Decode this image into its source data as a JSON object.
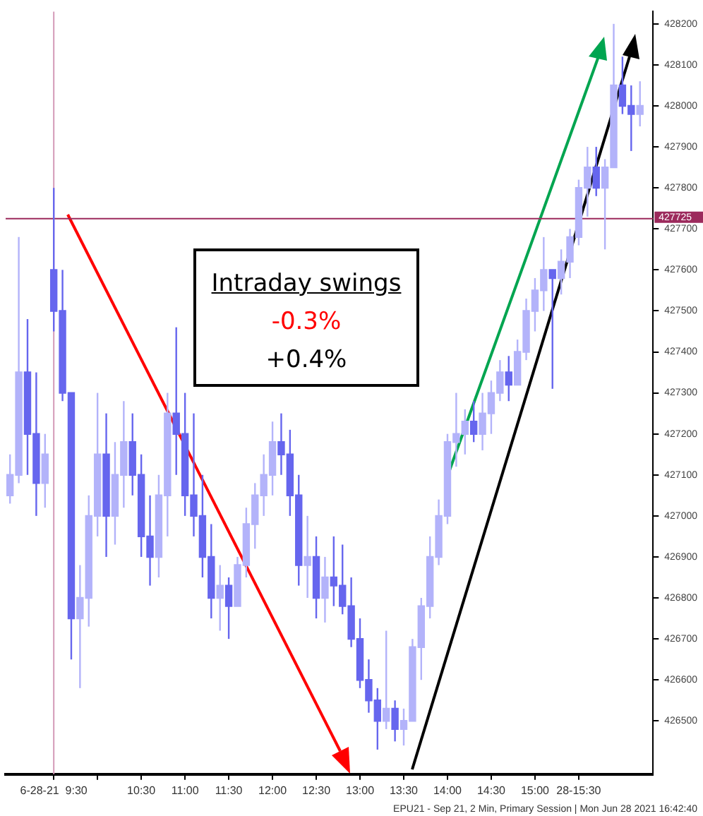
{
  "chart_data": {
    "type": "candlestick",
    "colors": [
      "#b3b3fa",
      "#b3b3fa",
      "#6666ee",
      "#6666ee",
      "#b3b3fa",
      "#6666ee",
      "#6666ee",
      "#6666ee",
      "#b3b3fa",
      "#b3b3fa",
      "#b3b3fa",
      "#6666ee",
      "#b3b3fa",
      "#b3b3fa",
      "#6666ee",
      "#6666ee",
      "#6666ee",
      "#b3b3fa",
      "#b3b3fa",
      "#6666ee",
      "#6666ee",
      "#6666ee",
      "#6666ee",
      "#6666ee",
      "#b3b3fa",
      "#6666ee",
      "#b3b3fa",
      "#b3b3fa",
      "#b3b3fa",
      "#b3b3fa",
      "#b3b3fa",
      "#6666ee",
      "#6666ee",
      "#6666ee",
      "#b3b3fa",
      "#6666ee",
      "#b3b3fa",
      "#6666ee",
      "#6666ee",
      "#6666ee",
      "#6666ee",
      "#6666ee",
      "#6666ee",
      "#b3b3fa",
      "#6666ee",
      "#b3b3fa",
      "#b3b3fa",
      "#b3b3fa",
      "#b3b3fa",
      "#b3b3fa",
      "#b3b3fa",
      "#b3b3fa",
      "#b3b3fa",
      "#6666ee",
      "#b3b3fa",
      "#b3b3fa",
      "#b3b3fa",
      "#6666ee",
      "#b3b3fa",
      "#b3b3fa",
      "#b3b3fa",
      "#b3b3fa",
      "#6666ee",
      "#b3b3fa",
      "#b3b3fa",
      "#b3b3fa",
      "#b3b3fa",
      "#6666ee",
      "#b3b3fa",
      "#b3b3fa",
      "#6666ee",
      "#6666ee",
      "#b3b3fa"
    ],
    "x": [
      9.0,
      9.1,
      9.2,
      9.3,
      9.4,
      9.5,
      9.6,
      9.7,
      9.8,
      9.9,
      10.0,
      10.1,
      10.2,
      10.3,
      10.4,
      10.5,
      10.6,
      10.7,
      10.8,
      10.9,
      11.0,
      11.1,
      11.2,
      11.3,
      11.4,
      11.5,
      11.6,
      11.7,
      11.8,
      11.9,
      12.0,
      12.1,
      12.2,
      12.3,
      12.4,
      12.5,
      12.6,
      12.7,
      12.8,
      12.9,
      13.0,
      13.1,
      13.2,
      13.3,
      13.4,
      13.5,
      13.6,
      13.7,
      13.8,
      13.9,
      14.0,
      14.1,
      14.2,
      14.3,
      14.4,
      14.5,
      14.6,
      14.7,
      14.8,
      14.9,
      15.0,
      15.1,
      15.2,
      15.3,
      15.4,
      15.5,
      15.6,
      15.7,
      15.8,
      15.9,
      16.0,
      16.1,
      16.2
    ],
    "ohlc": [
      [
        427050,
        427150,
        427030,
        427100
      ],
      [
        427100,
        427680,
        427080,
        427350
      ],
      [
        427350,
        427480,
        427100,
        427200
      ],
      [
        427200,
        427350,
        427000,
        427080
      ],
      [
        427080,
        427200,
        427020,
        427150
      ],
      [
        427600,
        427800,
        427450,
        427500
      ],
      [
        427500,
        427600,
        427280,
        427300
      ],
      [
        427300,
        427300,
        426650,
        426750
      ],
      [
        426750,
        426880,
        426580,
        426800
      ],
      [
        426800,
        427050,
        426730,
        427000
      ],
      [
        427000,
        427300,
        426950,
        427150
      ],
      [
        427150,
        427250,
        426900,
        427000
      ],
      [
        427000,
        427180,
        426930,
        427100
      ],
      [
        427100,
        427280,
        427020,
        427180
      ],
      [
        427180,
        427250,
        427050,
        427100
      ],
      [
        427100,
        427150,
        426900,
        426950
      ],
      [
        426950,
        427050,
        426830,
        426900
      ],
      [
        426900,
        427100,
        426850,
        427050
      ],
      [
        427050,
        427300,
        426950,
        427250
      ],
      [
        427250,
        427460,
        427100,
        427200
      ],
      [
        427200,
        427300,
        427000,
        427050
      ],
      [
        427050,
        427250,
        426950,
        427000
      ],
      [
        427000,
        427100,
        426850,
        426900
      ],
      [
        426900,
        426980,
        426750,
        426800
      ],
      [
        426800,
        426880,
        426720,
        426830
      ],
      [
        426830,
        426850,
        426700,
        426780
      ],
      [
        426780,
        426900,
        426780,
        426880
      ],
      [
        426880,
        427020,
        426850,
        426980
      ],
      [
        426980,
        427080,
        426920,
        427050
      ],
      [
        427050,
        427150,
        427000,
        427100
      ],
      [
        427100,
        427230,
        427050,
        427180
      ],
      [
        427180,
        427250,
        427100,
        427150
      ],
      [
        427150,
        427210,
        427000,
        427050
      ],
      [
        427050,
        427100,
        426830,
        426880
      ],
      [
        426880,
        427000,
        426800,
        426900
      ],
      [
        426900,
        426950,
        426750,
        426800
      ],
      [
        426800,
        426900,
        426740,
        426850
      ],
      [
        426850,
        426950,
        426780,
        426830
      ],
      [
        426830,
        426930,
        426760,
        426780
      ],
      [
        426780,
        426850,
        426680,
        426700
      ],
      [
        426700,
        426750,
        426580,
        426600
      ],
      [
        426600,
        426650,
        426520,
        426550
      ],
      [
        426550,
        426580,
        426430,
        426500
      ],
      [
        426500,
        426720,
        426480,
        426530
      ],
      [
        426530,
        426550,
        426450,
        426480
      ],
      [
        426480,
        426530,
        426440,
        426500
      ],
      [
        426500,
        426700,
        426500,
        426680
      ],
      [
        426680,
        426800,
        426600,
        426780
      ],
      [
        426780,
        426950,
        426750,
        426900
      ],
      [
        426900,
        427040,
        426880,
        427000
      ],
      [
        427000,
        427200,
        426980,
        427180
      ],
      [
        427180,
        427300,
        427120,
        427200
      ],
      [
        427200,
        427260,
        427150,
        427230
      ],
      [
        427230,
        427280,
        427180,
        427200
      ],
      [
        427200,
        427300,
        427160,
        427250
      ],
      [
        427250,
        427330,
        427200,
        427300
      ],
      [
        427300,
        427380,
        427280,
        427350
      ],
      [
        427350,
        427390,
        427280,
        427320
      ],
      [
        427320,
        427430,
        427320,
        427400
      ],
      [
        427400,
        427530,
        427380,
        427500
      ],
      [
        427500,
        427580,
        427450,
        427550
      ],
      [
        427550,
        427680,
        427500,
        427600
      ],
      [
        427600,
        427600,
        427310,
        427580
      ],
      [
        427580,
        427650,
        427540,
        427620
      ],
      [
        427620,
        427700,
        427580,
        427680
      ],
      [
        427680,
        427820,
        427660,
        427800
      ],
      [
        427800,
        427900,
        427730,
        427850
      ],
      [
        427850,
        427900,
        427780,
        427800
      ],
      [
        427800,
        427870,
        427650,
        427850
      ],
      [
        427850,
        428200,
        427850,
        428050
      ],
      [
        428050,
        428120,
        427980,
        428000
      ],
      [
        428000,
        428050,
        427890,
        427980
      ],
      [
        427980,
        428060,
        427950,
        428000
      ]
    ],
    "xlim": [
      8.95,
      16.35
    ],
    "ylim": [
      426370,
      428230
    ],
    "xticks": [
      {
        "value": 9.5,
        "label": "6-28-21  9:30"
      },
      {
        "value": 10.0,
        "label": null
      },
      {
        "value": 10.5,
        "label": "10:30"
      },
      {
        "value": 11.0,
        "label": "11:00"
      },
      {
        "value": 11.5,
        "label": "11:30"
      },
      {
        "value": 12.0,
        "label": "12:00"
      },
      {
        "value": 12.5,
        "label": "12:30"
      },
      {
        "value": 13.0,
        "label": "13:00"
      },
      {
        "value": 13.5,
        "label": "13:30"
      },
      {
        "value": 14.0,
        "label": "14:00"
      },
      {
        "value": 14.5,
        "label": "14:30"
      },
      {
        "value": 15.0,
        "label": "15:00"
      },
      {
        "value": 15.5,
        "label": "28-15:30"
      }
    ],
    "yticks": [
      426500,
      426600,
      426700,
      426800,
      426900,
      427000,
      427100,
      427200,
      427300,
      427400,
      427500,
      427600,
      427700,
      427800,
      427900,
      428000,
      428100,
      428200
    ],
    "ref_lines": [
      {
        "axis": "y",
        "value": 427725,
        "label": "427725",
        "color": "#9c2a5c"
      },
      {
        "axis": "x",
        "value": 9.5,
        "color": "#d49ab8"
      }
    ],
    "annotations": [
      "Intraday swings",
      "-0.3%",
      "+0.4%",
      "EPU21 - Sep 21, 2 Min, Primary Session | Mon Jun 28 2021 16:42:40"
    ]
  }
}
